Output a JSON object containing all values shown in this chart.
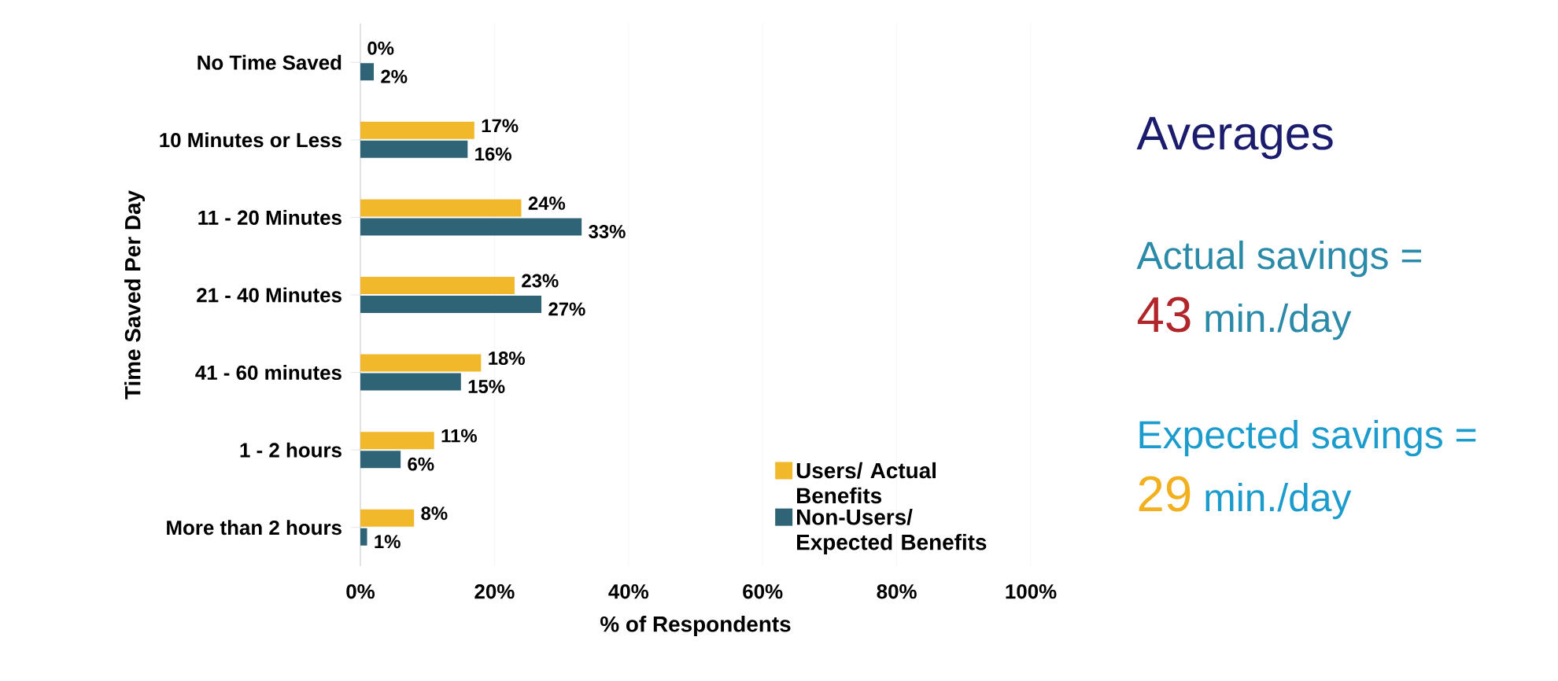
{
  "chart_data": [
    {
      "type": "bar",
      "orientation": "horizontal",
      "ylabel": "Time Saved Per Day",
      "xlabel": "% of Respondents",
      "categories": [
        "No Time Saved",
        "10 Minutes or Less",
        "11 - 20 Minutes",
        "21 - 40 Minutes",
        "41 - 60 minutes",
        "1 - 2 hours",
        "More than 2 hours"
      ],
      "series": [
        {
          "name": "Users/ Actual Benefits",
          "color": "#f0b82a",
          "values": [
            0,
            17,
            24,
            23,
            18,
            11,
            8
          ],
          "value_labels": [
            "0%",
            "17%",
            "24%",
            "23%",
            "18%",
            "11%",
            "8%"
          ]
        },
        {
          "name": "Non-Users/ Expected Benefits",
          "color": "#2e6475",
          "values": [
            2,
            16,
            33,
            27,
            15,
            6,
            1
          ],
          "value_labels": [
            "2%",
            "16%",
            "33%",
            "27%",
            "15%",
            "6%",
            "1%"
          ]
        }
      ],
      "xlim": [
        0,
        100
      ],
      "xticks": [
        {
          "value": 0,
          "label": "0%"
        },
        {
          "value": 20,
          "label": "20%"
        },
        {
          "value": 40,
          "label": "40%"
        },
        {
          "value": 60,
          "label": "60%"
        },
        {
          "value": 80,
          "label": "80%"
        },
        {
          "value": 100,
          "label": "100%"
        }
      ],
      "grid": "x",
      "legend": "bottom right"
    },
    {
      "type": "other",
      "title": "Averages",
      "annotations": [
        "Actual savings =",
        "43",
        "min./day",
        "Expected savings =",
        "29",
        "min./day"
      ]
    }
  ]
}
